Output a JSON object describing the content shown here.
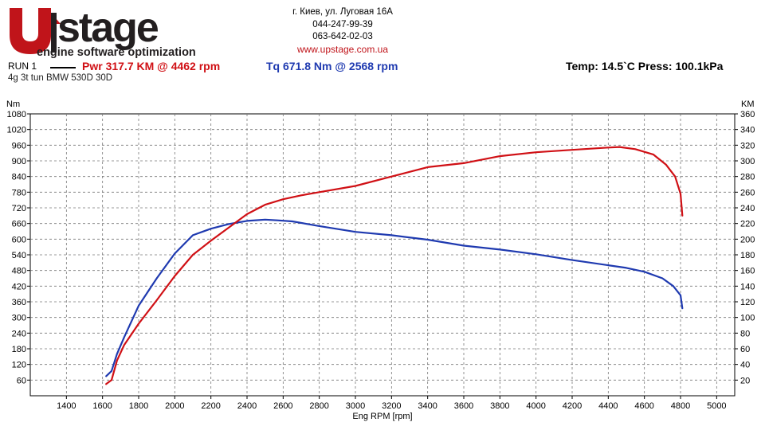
{
  "header": {
    "logo_text": "UPstage",
    "logo_tagline": "engine software optimization",
    "address": "г. Киев, ул. Луговая 16А",
    "phone1": "044-247-99-39",
    "phone2": "063-642-02-03",
    "url": "www.upstage.com.ua"
  },
  "run": {
    "label": "RUN 1",
    "power_text": "Pwr  317.7 KM @ 4462 rpm",
    "torque_text": "Tq 671.8 Nm @ 2568 rpm",
    "environment_text": "Temp: 14.5`C    Press: 100.1kPa",
    "description": "4g 3t tun BMW 530D 30D"
  },
  "colors": {
    "power": "#d01015",
    "torque": "#1f3ab0",
    "brand_red": "#c0141a",
    "brand_dark": "#231f20"
  },
  "chart_data": {
    "type": "line",
    "xlabel": "Eng RPM [rpm]",
    "ylabel_left": "Nm",
    "ylabel_right": "KM",
    "xlim": [
      1200,
      5100
    ],
    "ylim_left": [
      0,
      1080
    ],
    "ylim_right": [
      0,
      360
    ],
    "x_ticks": [
      1400,
      1600,
      1800,
      2000,
      2200,
      2400,
      2600,
      2800,
      3000,
      3200,
      3400,
      3600,
      3800,
      4000,
      4200,
      4400,
      4600,
      4800,
      5000
    ],
    "y_ticks_left": [
      60,
      120,
      180,
      240,
      300,
      360,
      420,
      480,
      540,
      600,
      660,
      720,
      780,
      840,
      900,
      960,
      1020,
      1080
    ],
    "y_ticks_right": [
      20,
      40,
      60,
      80,
      100,
      120,
      140,
      160,
      180,
      200,
      220,
      240,
      260,
      280,
      300,
      320,
      340,
      360
    ],
    "grid": true,
    "series": [
      {
        "name": "Tq",
        "axis": "left",
        "x": [
          1620,
          1650,
          1680,
          1720,
          1800,
          1900,
          2000,
          2100,
          2200,
          2300,
          2400,
          2500,
          2568,
          2650,
          2800,
          3000,
          3200,
          3400,
          3600,
          3800,
          4000,
          4200,
          4400,
          4500,
          4600,
          4700,
          4760,
          4800,
          4810
        ],
        "values": [
          75,
          95,
          160,
          225,
          345,
          450,
          545,
          615,
          640,
          658,
          670,
          675,
          672,
          668,
          650,
          628,
          615,
          598,
          575,
          560,
          542,
          520,
          500,
          490,
          475,
          450,
          420,
          385,
          335
        ]
      },
      {
        "name": "Pwr",
        "axis": "right",
        "x": [
          1620,
          1650,
          1680,
          1720,
          1800,
          1900,
          2000,
          2100,
          2200,
          2300,
          2400,
          2500,
          2600,
          2700,
          2800,
          3000,
          3200,
          3400,
          3600,
          3800,
          4000,
          4200,
          4400,
          4462,
          4550,
          4650,
          4720,
          4770,
          4800,
          4810
        ],
        "values": [
          15,
          20,
          45,
          65,
          92,
          122,
          153,
          180,
          198,
          215,
          232,
          244,
          251,
          256,
          260,
          268,
          280,
          292,
          297,
          306,
          311,
          314,
          317,
          317.7,
          315,
          308,
          295,
          280,
          258,
          230
        ]
      }
    ]
  }
}
